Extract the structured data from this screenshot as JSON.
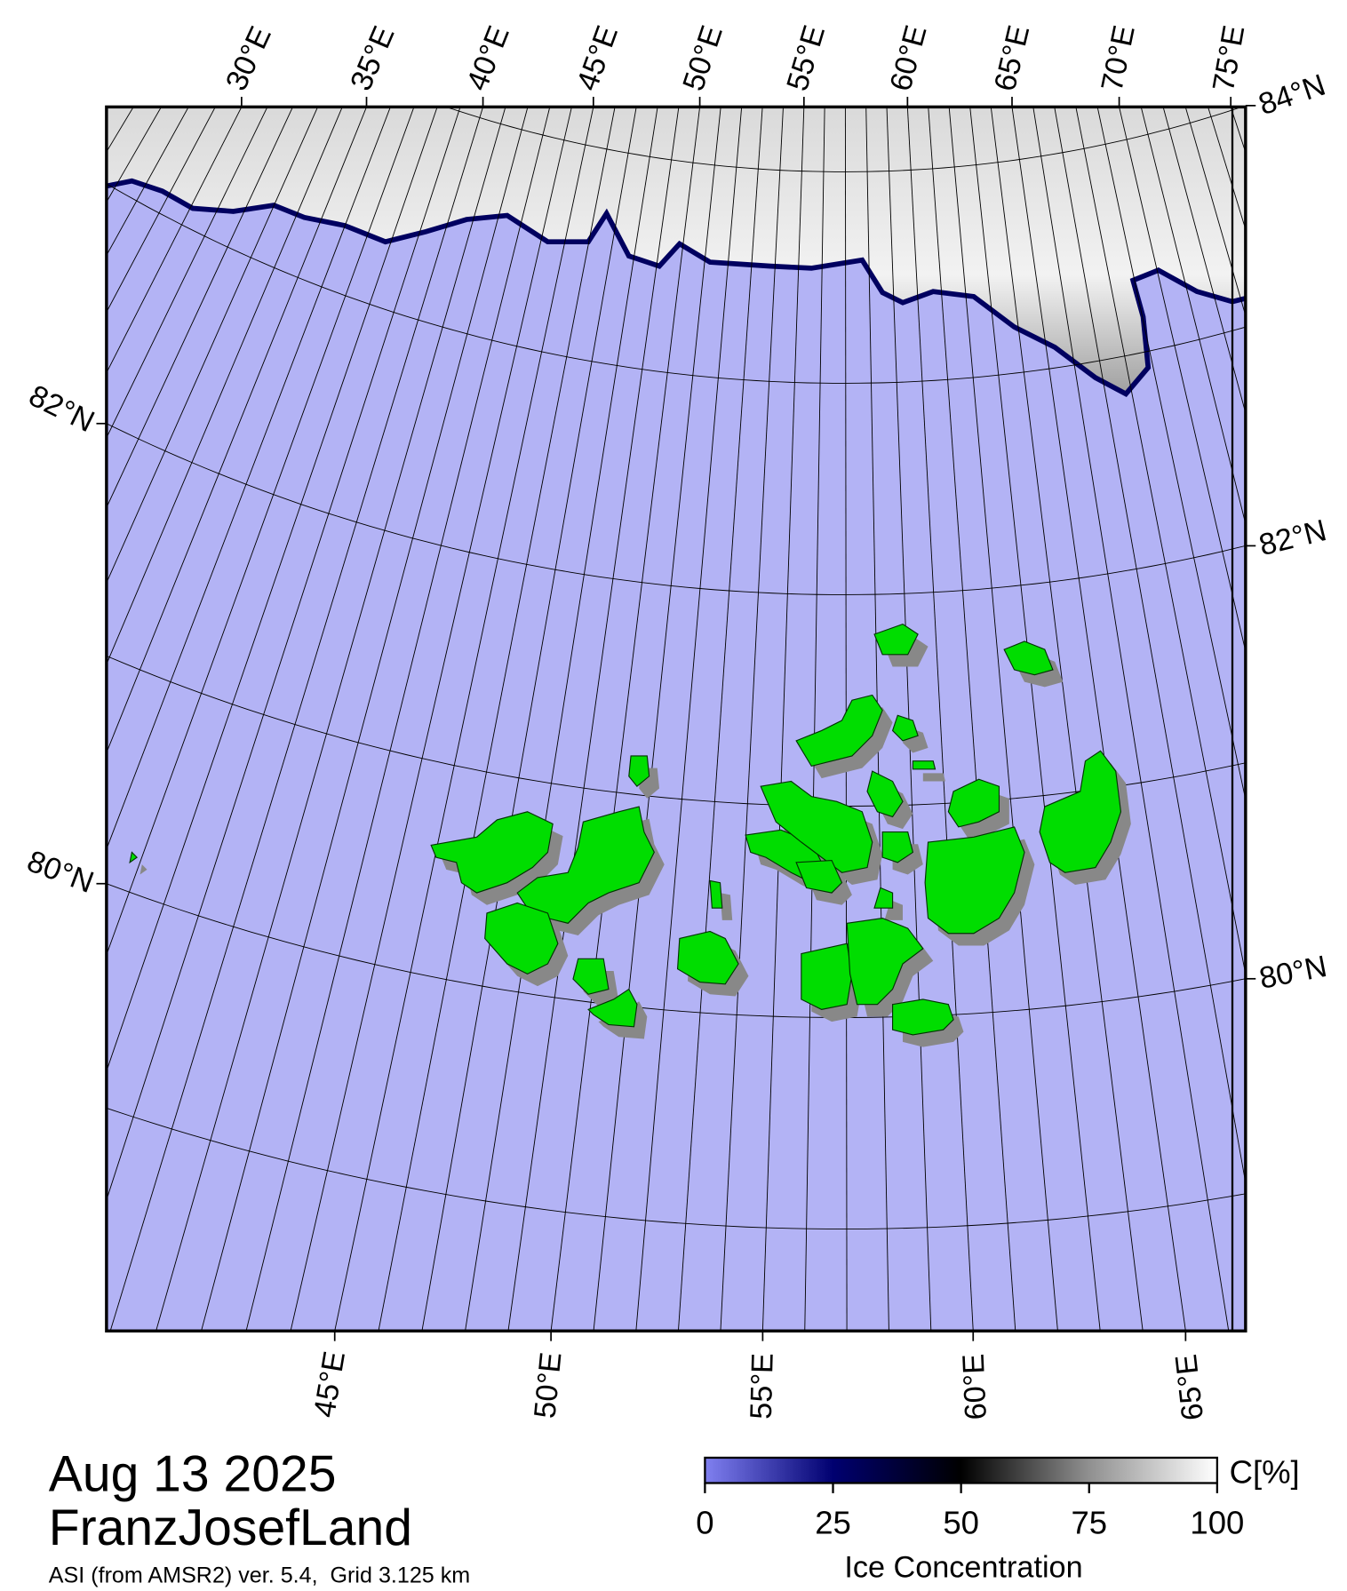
{
  "map": {
    "title": "Aug 13 2025",
    "region": "FranzJosefLand",
    "source": "ASI (from AMSR2) ver. 5.4,  Grid 3.125 km",
    "top_lon_ticks": [
      {
        "value": 30,
        "label": "30°E"
      },
      {
        "value": 35,
        "label": "35°E"
      },
      {
        "value": 40,
        "label": "40°E"
      },
      {
        "value": 45,
        "label": "45°E"
      },
      {
        "value": 50,
        "label": "50°E"
      },
      {
        "value": 55,
        "label": "55°E"
      },
      {
        "value": 60,
        "label": "60°E"
      },
      {
        "value": 65,
        "label": "65°E"
      },
      {
        "value": 70,
        "label": "70°E"
      },
      {
        "value": 75,
        "label": "75°E"
      }
    ],
    "bottom_lon_ticks": [
      {
        "value": 45,
        "label": "45°E"
      },
      {
        "value": 50,
        "label": "50°E"
      },
      {
        "value": 55,
        "label": "55°E"
      },
      {
        "value": 60,
        "label": "60°E"
      },
      {
        "value": 65,
        "label": "65°E"
      }
    ],
    "left_lat_ticks": [
      {
        "value": 82,
        "label": "82°N"
      },
      {
        "value": 80,
        "label": "80°N"
      }
    ],
    "right_lat_ticks": [
      {
        "value": 84,
        "label": "84°N"
      },
      {
        "value": 82,
        "label": "82°N"
      },
      {
        "value": 80,
        "label": "80°N"
      }
    ]
  },
  "colorbar": {
    "title": "Ice Concentration",
    "unit": "C[%]",
    "range": [
      0,
      100
    ],
    "ticks": [
      0,
      25,
      50,
      75,
      100
    ]
  }
}
